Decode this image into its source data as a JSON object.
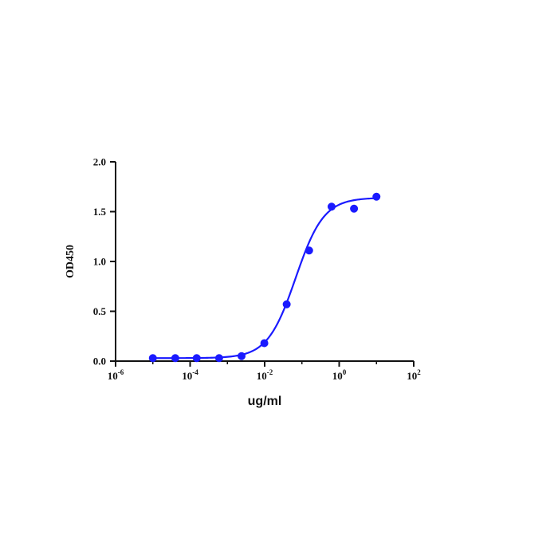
{
  "chart_data": {
    "type": "scatter",
    "title": "",
    "xlabel": "ug/ml",
    "ylabel": "OD450",
    "x_scale": "log10",
    "xlim": [
      1e-06,
      100
    ],
    "ylim": [
      0,
      2.0
    ],
    "x_ticks": [
      {
        "value": 1e-06,
        "base": "10",
        "exp": "-6"
      },
      {
        "value": 0.0001,
        "base": "10",
        "exp": "-4"
      },
      {
        "value": 0.01,
        "base": "10",
        "exp": "-2"
      },
      {
        "value": 1,
        "base": "10",
        "exp": "0"
      },
      {
        "value": 100,
        "base": "10",
        "exp": "2"
      }
    ],
    "y_ticks": [
      {
        "value": 0,
        "label": "0.0"
      },
      {
        "value": 0.5,
        "label": "0.5"
      },
      {
        "value": 1.0,
        "label": "1.0"
      },
      {
        "value": 1.5,
        "label": "1.5"
      },
      {
        "value": 2.0,
        "label": "2.0"
      }
    ],
    "grid": false,
    "legend": "none",
    "series": [
      {
        "color": "#1a1aff",
        "points": [
          {
            "x": 1e-05,
            "y": 0.03
          },
          {
            "x": 4e-05,
            "y": 0.03
          },
          {
            "x": 0.00015,
            "y": 0.03
          },
          {
            "x": 0.0006,
            "y": 0.03
          },
          {
            "x": 0.0024,
            "y": 0.05
          },
          {
            "x": 0.0098,
            "y": 0.18
          },
          {
            "x": 0.039,
            "y": 0.57
          },
          {
            "x": 0.156,
            "y": 1.11
          },
          {
            "x": 0.625,
            "y": 1.55
          },
          {
            "x": 2.5,
            "y": 1.53
          },
          {
            "x": 10,
            "y": 1.65
          }
        ],
        "fit": {
          "model": "4PL",
          "bottom": 0.03,
          "top": 1.64,
          "ec50": 0.068,
          "hill": 1.15
        }
      }
    ]
  }
}
